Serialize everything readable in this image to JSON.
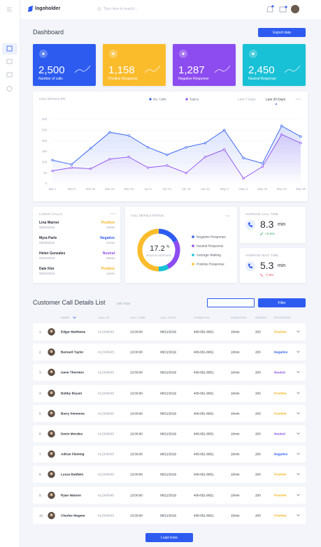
{
  "header": {
    "logo": "logoholder",
    "search": "Type here to search..."
  },
  "page_title": "Dashboard",
  "export_button": "Export data",
  "kpis": [
    {
      "value": "2,500",
      "label": "Number of calls",
      "color": "#2d5bf0"
    },
    {
      "value": "1,158",
      "label": "Positive Response",
      "color": "#fbbc2c"
    },
    {
      "value": "1,287",
      "label": "Negative Response",
      "color": "#8c4cf0"
    },
    {
      "value": "2,450",
      "label": "Neutral Response",
      "color": "#18c1d6"
    }
  ],
  "chart_data": [
    {
      "type": "line",
      "title": "CALL DETAILS KPI",
      "categories": [
        "Mar 1",
        "Mar 8",
        "Mar 15",
        "Mar 22",
        "Mar 29",
        "Apr 5",
        "Apr 12",
        "Apr 19",
        "Apr 26",
        "May 3",
        "May 9",
        "May 16",
        "May 23",
        "May 30"
      ],
      "series": [
        {
          "name": "No. Calls",
          "color": "#2d5bf0",
          "values": [
            110,
            90,
            165,
            240,
            225,
            170,
            135,
            170,
            190,
            250,
            120,
            95,
            270,
            220
          ]
        },
        {
          "name": "Topics",
          "color": "#8c4cf0",
          "values": [
            60,
            75,
            70,
            115,
            125,
            75,
            85,
            50,
            125,
            160,
            25,
            80,
            230,
            190
          ]
        }
      ],
      "ylim": [
        0,
        300
      ],
      "yticks": [
        0,
        50,
        100,
        150,
        200,
        250,
        300
      ],
      "grid": true,
      "tabs": [
        "Last 7 Days",
        "Last 30 Days"
      ],
      "active_tab": 1
    },
    {
      "type": "pie",
      "title": "CALL DETAILS STATUS",
      "categories": [
        "Negative Response",
        "Neutral Response",
        "Average Waiting",
        "Positive Response"
      ],
      "values": [
        17.2,
        24.8,
        8,
        50
      ],
      "colors": [
        "#2d5bf0",
        "#8c4cf0",
        "#18c1d6",
        "#fbbc2c"
      ],
      "center_unit": "%",
      "center_label": "NEGATIVE RESPONSE"
    }
  ],
  "response_colors": {
    "Positive": "#f5b31c",
    "Negative": "#2d5bf0",
    "Neutral": "#8c4cf0"
  },
  "latest_calls": {
    "title": "LATEST CALLS",
    "items": [
      {
        "name": "Lina Warner",
        "date": "06/03/2018",
        "response": "Positive",
        "duration": "24min"
      },
      {
        "name": "Myra Parle",
        "date": "06/03/2018",
        "response": "Negative",
        "duration": "21min"
      },
      {
        "name": "Helen Gonzales",
        "date": "06/04/2018",
        "response": "Neutral",
        "duration": "45min"
      },
      {
        "name": "Dale Kim",
        "date": "06/04/2018",
        "response": "Positive",
        "duration": "14min"
      }
    ]
  },
  "average_call_time": {
    "title": "AVERAGE CALL TIME",
    "value": "8.3",
    "unit": "min",
    "change": "+2.4%"
  },
  "average_wait_time": {
    "title": "AVERAGE WAIT TIME",
    "value": "5.3",
    "unit": "min",
    "change": "-7.6%"
  },
  "call_list": {
    "title": "Customer Call Details List",
    "total": "200 Total",
    "filter_button": "Filter",
    "columns": [
      "NAME",
      "CALL ID",
      "CALL TIME",
      "CALL DATE",
      "PHONE NO.",
      "DURATION",
      "WORDS",
      "RESPONSE"
    ],
    "rows": [
      [
        "1.",
        "Edgar Matthews",
        "#12345645",
        "13:00:00",
        "08/21/2019",
        "408-651-8651",
        "10min",
        "200",
        "Positive"
      ],
      [
        "2.",
        "Bernard Taylor",
        "#12345645",
        "13:00:00",
        "08/21/2019",
        "408-651-8651",
        "10min",
        "200",
        "Negative"
      ],
      [
        "3.",
        "Gene Thornton",
        "#12345645",
        "13:00:00",
        "08/21/2019",
        "408-651-8651",
        "10min",
        "200",
        "Neutral"
      ],
      [
        "4.",
        "Bobby Bryant",
        "#12345645",
        "13:00:00",
        "08/21/2019",
        "408-651-8651",
        "10min",
        "200",
        "Positive"
      ],
      [
        "5.",
        "Barry Simmons",
        "#12345645",
        "13:00:00",
        "08/21/2019",
        "408-651-8651",
        "10min",
        "200",
        "Positive"
      ],
      [
        "6.",
        "Devin Morales",
        "#12345645",
        "13:00:00",
        "08/21/2019",
        "408-651-8651",
        "10min",
        "200",
        "Neutral"
      ],
      [
        "7.",
        "Adrian Fleming",
        "#12345645",
        "13:00:00",
        "08/21/2019",
        "408-651-8651",
        "10min",
        "200",
        "Negative"
      ],
      [
        "8.",
        "Lucas Baldwin",
        "#12345645",
        "13:00:00",
        "08/21/2019",
        "408-651-8651",
        "10min",
        "200",
        "Positive"
      ],
      [
        "9.",
        "Ryan Watson",
        "#12345645",
        "13:00:00",
        "08/21/2019",
        "408-651-8651",
        "10min",
        "200",
        "Positive"
      ],
      [
        "10.",
        "Charles Wagner",
        "#12345645",
        "13:00:00",
        "08/21/2019",
        "408-651-8651",
        "10min",
        "200",
        "Positive"
      ]
    ]
  },
  "load_more": "Load more"
}
